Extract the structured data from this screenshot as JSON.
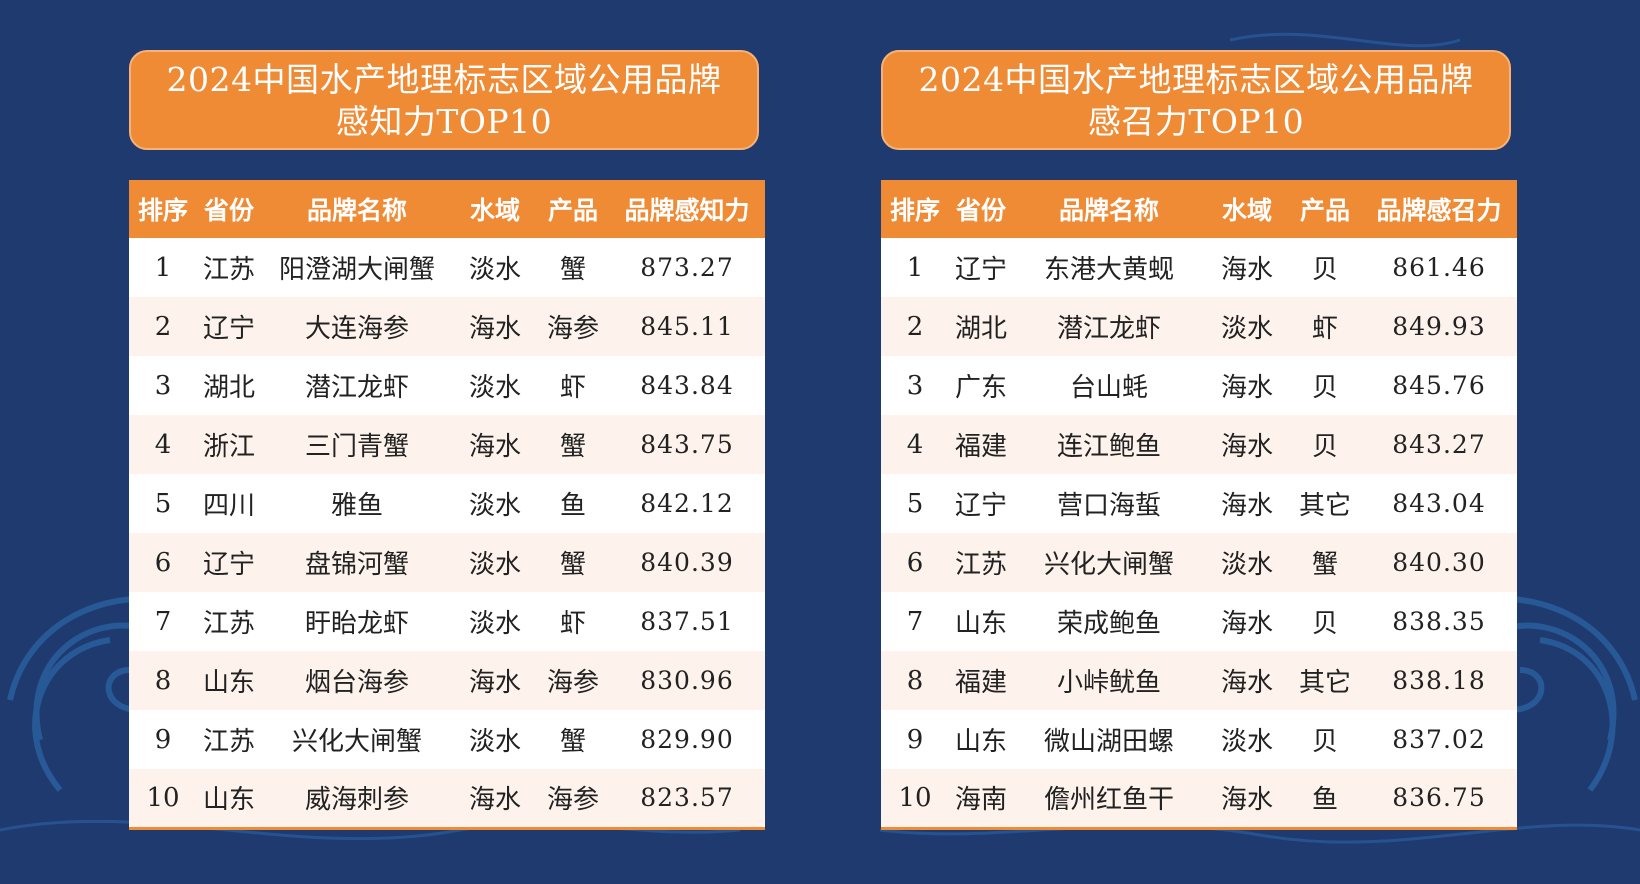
{
  "colors": {
    "background": "#1f3a6e",
    "accent": "#ef8a35",
    "row_alt": "#fdf3ec"
  },
  "panels": [
    {
      "title_line1": "2024中国水产地理标志区域公用品牌",
      "title_line2": "感知力TOP10",
      "columns": [
        "排序",
        "省份",
        "品牌名称",
        "水域",
        "产品",
        "品牌感知力"
      ],
      "rows": [
        [
          "1",
          "江苏",
          "阳澄湖大闸蟹",
          "淡水",
          "蟹",
          "873.27"
        ],
        [
          "2",
          "辽宁",
          "大连海参",
          "海水",
          "海参",
          "845.11"
        ],
        [
          "3",
          "湖北",
          "潜江龙虾",
          "淡水",
          "虾",
          "843.84"
        ],
        [
          "4",
          "浙江",
          "三门青蟹",
          "海水",
          "蟹",
          "843.75"
        ],
        [
          "5",
          "四川",
          "雅鱼",
          "淡水",
          "鱼",
          "842.12"
        ],
        [
          "6",
          "辽宁",
          "盘锦河蟹",
          "淡水",
          "蟹",
          "840.39"
        ],
        [
          "7",
          "江苏",
          "盱眙龙虾",
          "淡水",
          "虾",
          "837.51"
        ],
        [
          "8",
          "山东",
          "烟台海参",
          "海水",
          "海参",
          "830.96"
        ],
        [
          "9",
          "江苏",
          "兴化大闸蟹",
          "淡水",
          "蟹",
          "829.90"
        ],
        [
          "10",
          "山东",
          "威海刺参",
          "海水",
          "海参",
          "823.57"
        ]
      ]
    },
    {
      "title_line1": "2024中国水产地理标志区域公用品牌",
      "title_line2": "感召力TOP10",
      "columns": [
        "排序",
        "省份",
        "品牌名称",
        "水域",
        "产品",
        "品牌感召力"
      ],
      "rows": [
        [
          "1",
          "辽宁",
          "东港大黄蚬",
          "海水",
          "贝",
          "861.46"
        ],
        [
          "2",
          "湖北",
          "潜江龙虾",
          "淡水",
          "虾",
          "849.93"
        ],
        [
          "3",
          "广东",
          "台山蚝",
          "海水",
          "贝",
          "845.76"
        ],
        [
          "4",
          "福建",
          "连江鲍鱼",
          "海水",
          "贝",
          "843.27"
        ],
        [
          "5",
          "辽宁",
          "营口海蜇",
          "海水",
          "其它",
          "843.04"
        ],
        [
          "6",
          "江苏",
          "兴化大闸蟹",
          "淡水",
          "蟹",
          "840.30"
        ],
        [
          "7",
          "山东",
          "荣成鲍鱼",
          "海水",
          "贝",
          "838.35"
        ],
        [
          "8",
          "福建",
          "小峠鱿鱼",
          "海水",
          "其它",
          "838.18"
        ],
        [
          "9",
          "山东",
          "微山湖田螺",
          "淡水",
          "贝",
          "837.02"
        ],
        [
          "10",
          "海南",
          "儋州红鱼干",
          "海水",
          "鱼",
          "836.75"
        ]
      ]
    }
  ]
}
